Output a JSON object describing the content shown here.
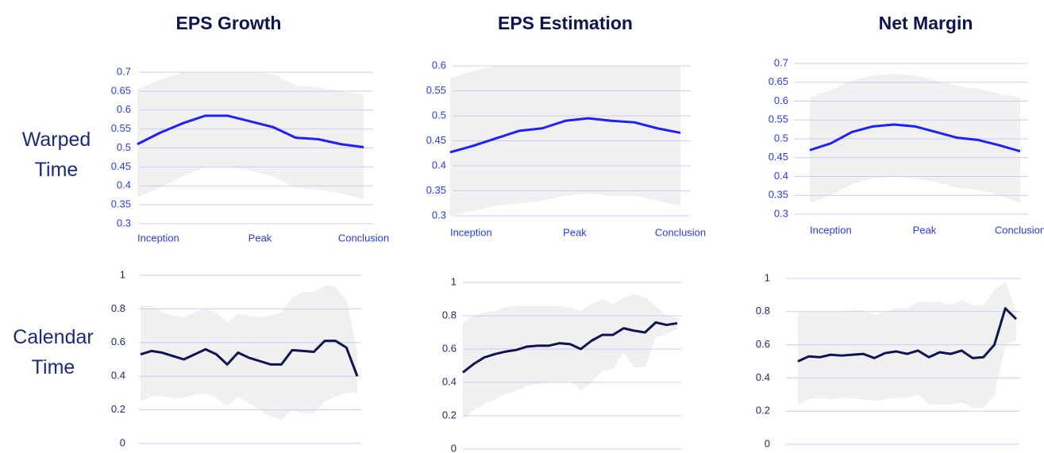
{
  "column_titles": [
    "EPS Growth",
    "EPS Estimation",
    "Net Margin"
  ],
  "row_labels": [
    "Warped Time",
    "Calendar Time"
  ],
  "chart_data": [
    {
      "type": "line",
      "categories": [
        "Inception",
        null,
        null,
        null,
        null,
        "Peak",
        null,
        null,
        null,
        null,
        "Conclusion"
      ],
      "series": [
        {
          "color": "#1f1fff",
          "values": [
            0.51,
            0.54,
            0.565,
            0.585,
            0.585,
            0.57,
            0.555,
            0.527,
            0.523,
            0.51,
            0.502
          ],
          "band": {
            "color": "#f0f0f0",
            "upper": [
              0.655,
              0.68,
              0.7,
              0.7,
              0.7,
              0.7,
              0.695,
              0.665,
              0.66,
              0.65,
              0.64
            ],
            "lower": [
              0.37,
              0.395,
              0.425,
              0.45,
              0.45,
              0.44,
              0.425,
              0.395,
              0.39,
              0.38,
              0.365
            ]
          }
        }
      ],
      "ylim": [
        0.3,
        0.7
      ],
      "yticks": [
        0.3,
        0.35,
        0.4,
        0.45,
        0.5,
        0.55,
        0.6,
        0.65,
        0.7
      ],
      "grid": true
    },
    {
      "type": "line",
      "categories": [
        "Inception",
        null,
        null,
        null,
        null,
        "Peak",
        null,
        null,
        null,
        null,
        "Conclusion"
      ],
      "series": [
        {
          "color": "#1f1fff",
          "values": [
            0.427,
            0.44,
            0.455,
            0.47,
            0.475,
            0.49,
            0.495,
            0.49,
            0.487,
            0.475,
            0.466
          ],
          "band": {
            "color": "#f0f0f0",
            "upper": [
              0.575,
              0.59,
              0.6,
              0.6,
              0.6,
              0.6,
              0.6,
              0.6,
              0.6,
              0.6,
              0.6
            ],
            "lower": [
              0.3,
              0.31,
              0.32,
              0.325,
              0.33,
              0.34,
              0.345,
              0.34,
              0.34,
              0.33,
              0.32
            ]
          }
        }
      ],
      "ylim": [
        0.3,
        0.6
      ],
      "yticks": [
        0.3,
        0.35,
        0.4,
        0.45,
        0.5,
        0.55,
        0.6
      ],
      "grid": true
    },
    {
      "type": "line",
      "categories": [
        "Inception",
        null,
        null,
        null,
        null,
        "Peak",
        null,
        null,
        null,
        null,
        "Conclusion"
      ],
      "series": [
        {
          "color": "#1f1fff",
          "values": [
            0.47,
            0.488,
            0.518,
            0.533,
            0.538,
            0.533,
            0.518,
            0.503,
            0.497,
            0.483,
            0.467
          ],
          "band": {
            "color": "#f0f0f0",
            "upper": [
              0.61,
              0.63,
              0.655,
              0.668,
              0.673,
              0.668,
              0.655,
              0.64,
              0.633,
              0.62,
              0.61
            ],
            "lower": [
              0.33,
              0.35,
              0.38,
              0.395,
              0.4,
              0.395,
              0.385,
              0.37,
              0.365,
              0.35,
              0.33
            ]
          }
        }
      ],
      "ylim": [
        0.3,
        0.7
      ],
      "yticks": [
        0.3,
        0.35,
        0.4,
        0.45,
        0.5,
        0.55,
        0.6,
        0.65,
        0.7
      ],
      "grid": true
    },
    {
      "type": "line",
      "series": [
        {
          "color": "#0d1450",
          "values": [
            0.53,
            0.55,
            0.54,
            0.52,
            0.5,
            0.53,
            0.56,
            0.53,
            0.47,
            0.54,
            0.51,
            0.49,
            0.47,
            0.47,
            0.555,
            0.55,
            0.545,
            0.61,
            0.61,
            0.57,
            0.4
          ],
          "band": {
            "color": "#f0f0f0",
            "upper": [
              0.82,
              0.82,
              0.78,
              0.76,
              0.75,
              0.78,
              0.8,
              0.78,
              0.72,
              0.77,
              0.76,
              0.75,
              0.76,
              0.78,
              0.87,
              0.9,
              0.9,
              0.94,
              0.93,
              0.85,
              0.55
            ],
            "lower": [
              0.25,
              0.28,
              0.28,
              0.27,
              0.27,
              0.29,
              0.3,
              0.27,
              0.22,
              0.28,
              0.24,
              0.2,
              0.16,
              0.14,
              0.2,
              0.18,
              0.18,
              0.25,
              0.28,
              0.3,
              0.3
            ]
          }
        }
      ],
      "ylim": [
        0,
        1
      ],
      "yticks": [
        0,
        0.2,
        0.4,
        0.6,
        0.8,
        1
      ],
      "grid": true
    },
    {
      "type": "line",
      "series": [
        {
          "color": "#0d1450",
          "values": [
            0.46,
            0.51,
            0.55,
            0.57,
            0.585,
            0.595,
            0.615,
            0.62,
            0.62,
            0.635,
            0.63,
            0.6,
            0.65,
            0.685,
            0.685,
            0.725,
            0.71,
            0.7,
            0.76,
            0.745,
            0.755
          ],
          "band": {
            "color": "#f0f0f0",
            "upper": [
              0.76,
              0.8,
              0.82,
              0.83,
              0.85,
              0.86,
              0.86,
              0.86,
              0.86,
              0.86,
              0.85,
              0.83,
              0.87,
              0.9,
              0.87,
              0.91,
              0.93,
              0.91,
              0.86,
              0.8,
              0.79
            ],
            "lower": [
              0.18,
              0.23,
              0.27,
              0.3,
              0.33,
              0.35,
              0.38,
              0.39,
              0.4,
              0.4,
              0.41,
              0.35,
              0.4,
              0.47,
              0.48,
              0.58,
              0.49,
              0.49,
              0.67,
              0.69,
              0.72
            ]
          }
        }
      ],
      "ylim": [
        0,
        1
      ],
      "yticks": [
        0,
        0.2,
        0.4,
        0.6,
        0.8,
        1
      ],
      "grid": true
    },
    {
      "type": "line",
      "series": [
        {
          "color": "#0d1450",
          "values": [
            0.5,
            0.53,
            0.525,
            0.54,
            0.535,
            0.54,
            0.545,
            0.52,
            0.55,
            0.56,
            0.545,
            0.565,
            0.525,
            0.555,
            0.545,
            0.565,
            0.52,
            0.525,
            0.6,
            0.82,
            0.755
          ],
          "band": {
            "color": "#f0f0f0",
            "upper": [
              0.79,
              0.8,
              0.8,
              0.8,
              0.8,
              0.81,
              0.81,
              0.78,
              0.8,
              0.82,
              0.82,
              0.86,
              0.86,
              0.86,
              0.84,
              0.87,
              0.84,
              0.84,
              0.93,
              0.98,
              0.8
            ],
            "lower": [
              0.23,
              0.27,
              0.28,
              0.27,
              0.28,
              0.28,
              0.27,
              0.26,
              0.27,
              0.28,
              0.28,
              0.3,
              0.24,
              0.24,
              0.24,
              0.25,
              0.22,
              0.22,
              0.29,
              0.6,
              0.62
            ]
          }
        }
      ],
      "ylim": [
        0,
        1
      ],
      "yticks": [
        0,
        0.2,
        0.4,
        0.6,
        0.8,
        1
      ],
      "grid": true
    }
  ]
}
